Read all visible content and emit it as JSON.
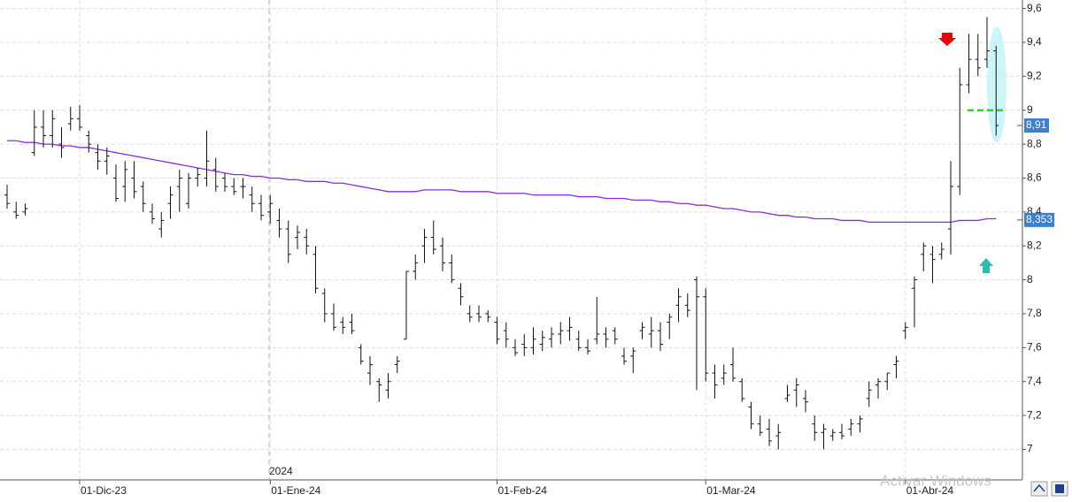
{
  "chart_data": {
    "type": "ohlc",
    "categories": [
      null,
      null,
      null,
      null,
      null,
      null,
      null,
      null,
      "01-Dic-23",
      null,
      null,
      null,
      null,
      null,
      null,
      null,
      null,
      null,
      null,
      null,
      null,
      null,
      null,
      null,
      null,
      null,
      null,
      null,
      null,
      "01-Ene-24",
      null,
      null,
      null,
      null,
      null,
      null,
      null,
      null,
      null,
      null,
      null,
      null,
      null,
      null,
      null,
      null,
      null,
      null,
      null,
      null,
      null,
      null,
      null,
      null,
      "01-Feb-24",
      null,
      null,
      null,
      null,
      null,
      null,
      null,
      null,
      null,
      null,
      null,
      null,
      null,
      null,
      null,
      null,
      null,
      null,
      null,
      null,
      null,
      null,
      "01-Mar-24",
      null,
      null,
      null,
      null,
      null,
      null,
      null,
      null,
      null,
      null,
      null,
      null,
      null,
      null,
      null,
      null,
      null,
      null,
      null,
      null,
      null,
      "01-Abr-24",
      null,
      null,
      null,
      null,
      null,
      null,
      null,
      null,
      null,
      null
    ],
    "bars": [
      [
        8.5,
        8.56,
        8.42,
        8.45
      ],
      [
        8.4,
        8.46,
        8.36,
        8.38
      ],
      [
        8.4,
        8.45,
        8.38,
        8.42
      ],
      [
        8.75,
        9.0,
        8.73,
        8.9
      ],
      [
        8.9,
        9.0,
        8.78,
        8.85
      ],
      [
        8.85,
        9.0,
        8.78,
        8.95
      ],
      [
        8.8,
        8.9,
        8.72,
        8.78
      ],
      [
        8.92,
        9.02,
        8.88,
        8.95
      ],
      [
        8.95,
        9.03,
        8.88,
        8.9
      ],
      [
        8.85,
        8.88,
        8.75,
        8.8
      ],
      [
        8.75,
        8.8,
        8.65,
        8.7
      ],
      [
        8.7,
        8.78,
        8.62,
        8.73
      ],
      [
        8.6,
        8.68,
        8.46,
        8.48
      ],
      [
        8.55,
        8.7,
        8.46,
        8.65
      ],
      [
        8.6,
        8.7,
        8.48,
        8.52
      ],
      [
        8.55,
        8.58,
        8.4,
        8.45
      ],
      [
        8.4,
        8.45,
        8.33,
        8.36
      ],
      [
        8.3,
        8.4,
        8.25,
        8.35
      ],
      [
        8.45,
        8.55,
        8.36,
        8.5
      ],
      [
        8.55,
        8.65,
        8.4,
        8.6
      ],
      [
        8.45,
        8.63,
        8.42,
        8.6
      ],
      [
        8.6,
        8.66,
        8.55,
        8.62
      ],
      [
        8.6,
        8.88,
        8.55,
        8.7
      ],
      [
        8.65,
        8.72,
        8.52,
        8.55
      ],
      [
        8.6,
        8.63,
        8.52,
        8.55
      ],
      [
        8.55,
        8.6,
        8.5,
        8.52
      ],
      [
        8.55,
        8.6,
        8.48,
        8.55
      ],
      [
        8.5,
        8.55,
        8.4,
        8.45
      ],
      [
        8.45,
        8.5,
        8.35,
        8.38
      ],
      [
        8.4,
        8.5,
        8.33,
        8.45
      ],
      [
        8.35,
        8.42,
        8.25,
        8.3
      ],
      [
        8.3,
        8.35,
        8.1,
        8.15
      ],
      [
        8.25,
        8.32,
        8.18,
        8.28
      ],
      [
        8.25,
        8.3,
        8.15,
        8.2
      ],
      [
        8.15,
        8.2,
        7.92,
        7.95
      ],
      [
        7.92,
        7.95,
        7.75,
        7.8
      ],
      [
        7.8,
        7.86,
        7.7,
        7.72
      ],
      [
        7.75,
        7.78,
        7.68,
        7.72
      ],
      [
        7.75,
        7.8,
        7.68,
        7.7
      ],
      [
        7.6,
        7.62,
        7.5,
        7.52
      ],
      [
        7.45,
        7.55,
        7.38,
        7.5
      ],
      [
        7.4,
        7.42,
        7.28,
        7.38
      ],
      [
        7.35,
        7.45,
        7.3,
        7.4
      ],
      [
        7.5,
        7.55,
        7.45,
        7.52
      ],
      [
        7.65,
        8.05,
        7.65,
        8.05
      ],
      [
        8.05,
        8.15,
        8.0,
        8.1
      ],
      [
        8.2,
        8.3,
        8.1,
        8.25
      ],
      [
        8.25,
        8.35,
        8.15,
        8.18
      ],
      [
        8.2,
        8.25,
        8.05,
        8.1
      ],
      [
        8.1,
        8.15,
        7.98,
        8.0
      ],
      [
        7.95,
        7.98,
        7.85,
        7.9
      ],
      [
        7.8,
        7.85,
        7.75,
        7.78
      ],
      [
        7.8,
        7.85,
        7.75,
        7.78
      ],
      [
        7.8,
        7.82,
        7.75,
        7.78
      ],
      [
        7.75,
        7.78,
        7.62,
        7.65
      ],
      [
        7.7,
        7.75,
        7.6,
        7.65
      ],
      [
        7.6,
        7.65,
        7.55,
        7.57
      ],
      [
        7.62,
        7.68,
        7.55,
        7.6
      ],
      [
        7.6,
        7.72,
        7.56,
        7.65
      ],
      [
        7.62,
        7.7,
        7.58,
        7.66
      ],
      [
        7.65,
        7.72,
        7.6,
        7.68
      ],
      [
        7.68,
        7.75,
        7.62,
        7.7
      ],
      [
        7.7,
        7.78,
        7.64,
        7.72
      ],
      [
        7.65,
        7.7,
        7.58,
        7.6
      ],
      [
        7.6,
        7.65,
        7.56,
        7.58
      ],
      [
        7.65,
        7.9,
        7.62,
        7.68
      ],
      [
        7.68,
        7.72,
        7.6,
        7.65
      ],
      [
        7.7,
        7.72,
        7.62,
        7.65
      ],
      [
        7.55,
        7.6,
        7.5,
        7.52
      ],
      [
        7.55,
        7.6,
        7.45,
        7.58
      ],
      [
        7.7,
        7.75,
        7.65,
        7.72
      ],
      [
        7.68,
        7.78,
        7.6,
        7.7
      ],
      [
        7.7,
        7.75,
        7.58,
        7.62
      ],
      [
        7.75,
        7.8,
        7.65,
        7.78
      ],
      [
        7.85,
        7.95,
        7.75,
        7.9
      ],
      [
        7.85,
        7.92,
        7.78,
        7.82
      ],
      [
        8.0,
        8.02,
        7.35,
        7.9
      ],
      [
        7.9,
        7.95,
        7.4,
        7.45
      ],
      [
        7.45,
        7.5,
        7.3,
        7.38
      ],
      [
        7.42,
        7.5,
        7.38,
        7.45
      ],
      [
        7.5,
        7.6,
        7.4,
        7.42
      ],
      [
        7.4,
        7.42,
        7.28,
        7.3
      ],
      [
        7.25,
        7.28,
        7.12,
        7.15
      ],
      [
        7.15,
        7.2,
        7.08,
        7.1
      ],
      [
        7.12,
        7.18,
        7.02,
        7.05
      ],
      [
        7.08,
        7.15,
        7.0,
        7.1
      ],
      [
        7.3,
        7.38,
        7.28,
        7.32
      ],
      [
        7.35,
        7.42,
        7.25,
        7.38
      ],
      [
        7.3,
        7.35,
        7.22,
        7.28
      ],
      [
        7.15,
        7.2,
        7.05,
        7.1
      ],
      [
        7.1,
        7.15,
        7.0,
        7.12
      ],
      [
        7.08,
        7.12,
        7.05,
        7.1
      ],
      [
        7.1,
        7.15,
        7.06,
        7.08
      ],
      [
        7.12,
        7.18,
        7.08,
        7.15
      ],
      [
        7.15,
        7.2,
        7.1,
        7.18
      ],
      [
        7.3,
        7.4,
        7.25,
        7.35
      ],
      [
        7.38,
        7.42,
        7.3,
        7.4
      ],
      [
        7.4,
        7.45,
        7.35,
        7.45
      ],
      [
        7.5,
        7.55,
        7.42,
        7.52
      ],
      [
        7.7,
        7.75,
        7.65,
        7.72
      ],
      [
        7.95,
        8.02,
        7.72,
        8.0
      ],
      [
        8.15,
        8.22,
        8.05,
        8.2
      ],
      [
        8.15,
        8.2,
        7.98,
        8.12
      ],
      [
        8.15,
        8.22,
        8.12,
        8.18
      ],
      [
        8.3,
        8.7,
        8.15,
        8.55
      ],
      [
        8.55,
        9.25,
        8.5,
        9.15
      ],
      [
        9.15,
        9.45,
        9.1,
        9.3
      ],
      [
        9.3,
        9.45,
        9.2,
        9.25
      ],
      [
        9.3,
        9.55,
        9.25,
        9.35
      ],
      [
        9.35,
        9.38,
        8.85,
        8.91
      ]
    ],
    "ma": {
      "color": "#8a2be2",
      "values": [
        8.82,
        8.82,
        8.81,
        8.81,
        8.8,
        8.8,
        8.79,
        8.79,
        8.78,
        8.78,
        8.77,
        8.76,
        8.75,
        8.74,
        8.73,
        8.72,
        8.71,
        8.7,
        8.69,
        8.68,
        8.67,
        8.66,
        8.65,
        8.64,
        8.63,
        8.62,
        8.62,
        8.61,
        8.61,
        8.6,
        8.6,
        8.59,
        8.59,
        8.58,
        8.58,
        8.58,
        8.57,
        8.57,
        8.56,
        8.55,
        8.54,
        8.53,
        8.52,
        8.52,
        8.52,
        8.52,
        8.53,
        8.53,
        8.53,
        8.53,
        8.52,
        8.52,
        8.52,
        8.52,
        8.51,
        8.51,
        8.51,
        8.51,
        8.5,
        8.5,
        8.5,
        8.5,
        8.5,
        8.49,
        8.49,
        8.49,
        8.48,
        8.48,
        8.48,
        8.47,
        8.47,
        8.47,
        8.46,
        8.46,
        8.45,
        8.45,
        8.44,
        8.44,
        8.43,
        8.42,
        8.42,
        8.41,
        8.4,
        8.4,
        8.39,
        8.38,
        8.38,
        8.37,
        8.37,
        8.36,
        8.36,
        8.36,
        8.35,
        8.35,
        8.35,
        8.34,
        8.34,
        8.34,
        8.34,
        8.34,
        8.34,
        8.34,
        8.34,
        8.34,
        8.34,
        8.35,
        8.35,
        8.35,
        8.36,
        8.36
      ],
      "last": 8.353,
      "last_label": "8,353"
    },
    "last_price": 8.91,
    "last_price_label": "8,91",
    "level": 9,
    "year_label": "2024",
    "watermark": "Activar Windows",
    "ylim": [
      6.82,
      9.65
    ],
    "yticks": [
      {
        "value": 7,
        "label": "7"
      },
      {
        "value": 7.2,
        "label": "7,2"
      },
      {
        "value": 7.4,
        "label": "7,4"
      },
      {
        "value": 7.6,
        "label": "7,6"
      },
      {
        "value": 7.8,
        "label": "7,8"
      },
      {
        "value": 8,
        "label": "8"
      },
      {
        "value": 8.2,
        "label": "8,2"
      },
      {
        "value": 8.4,
        "label": "8,4"
      },
      {
        "value": 8.6,
        "label": "8,6"
      },
      {
        "value": 8.8,
        "label": "8,8"
      },
      {
        "value": 9,
        "label": "9"
      },
      {
        "value": 9.2,
        "label": "9,2"
      },
      {
        "value": 9.4,
        "label": "9,4"
      },
      {
        "value": 9.6,
        "label": "9,6"
      }
    ],
    "grid": true
  }
}
